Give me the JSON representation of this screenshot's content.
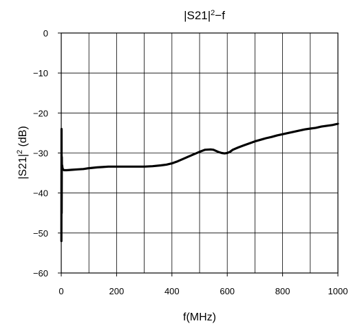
{
  "chart_data": {
    "type": "line",
    "title_main": "|S21|",
    "title_sup": "2",
    "title_tail": "−f",
    "xlabel": "f(MHz)",
    "ylabel_main": "|S21|",
    "ylabel_sup": "2",
    "ylabel_tail": " (dB)",
    "xlim": [
      0,
      1000
    ],
    "ylim": [
      -60,
      0
    ],
    "xticks": [
      0,
      200,
      400,
      600,
      800,
      1000
    ],
    "xtick_labels": [
      "0",
      "200",
      "400",
      "600",
      "800",
      "1000"
    ],
    "yticks": [
      0,
      -10,
      -20,
      -30,
      -40,
      -50,
      -60
    ],
    "ytick_labels": [
      "0",
      "−10",
      "−20",
      "−30",
      "−40",
      "−50",
      "−60"
    ],
    "x_gridlines": [
      100,
      200,
      300,
      400,
      500,
      600,
      700,
      800,
      900
    ],
    "y_gridlines": [
      -10,
      -20,
      -30,
      -40,
      -50
    ],
    "grid": true,
    "line_color": "#000000",
    "series": [
      {
        "x": [
          0.5,
          1,
          1.5,
          2,
          2.5,
          3,
          4,
          5,
          6,
          8,
          10,
          20,
          40,
          60,
          80,
          100,
          130,
          150,
          170,
          200,
          250,
          300,
          330,
          360,
          380,
          400,
          420,
          440,
          460,
          480,
          500,
          520,
          540,
          550,
          560,
          570,
          580,
          590,
          600,
          610,
          620,
          640,
          660,
          680,
          700,
          720,
          740,
          760,
          780,
          800,
          820,
          840,
          860,
          880,
          900,
          920,
          940,
          960,
          980,
          1000
        ],
        "y": [
          -52,
          -24,
          -45,
          -31,
          -34,
          -33,
          -33.5,
          -34,
          -34,
          -34.2,
          -34.3,
          -34.3,
          -34.2,
          -34.1,
          -34,
          -33.8,
          -33.6,
          -33.5,
          -33.4,
          -33.4,
          -33.4,
          -33.4,
          -33.3,
          -33.1,
          -32.9,
          -32.6,
          -32.1,
          -31.5,
          -30.9,
          -30.3,
          -29.7,
          -29.2,
          -29.1,
          -29.2,
          -29.5,
          -29.8,
          -30,
          -30.1,
          -30,
          -29.7,
          -29.2,
          -28.6,
          -28.1,
          -27.6,
          -27.1,
          -26.7,
          -26.3,
          -26,
          -25.6,
          -25.3,
          -25,
          -24.7,
          -24.4,
          -24.1,
          -23.9,
          -23.7,
          -23.4,
          -23.2,
          -23,
          -22.7
        ]
      }
    ]
  }
}
